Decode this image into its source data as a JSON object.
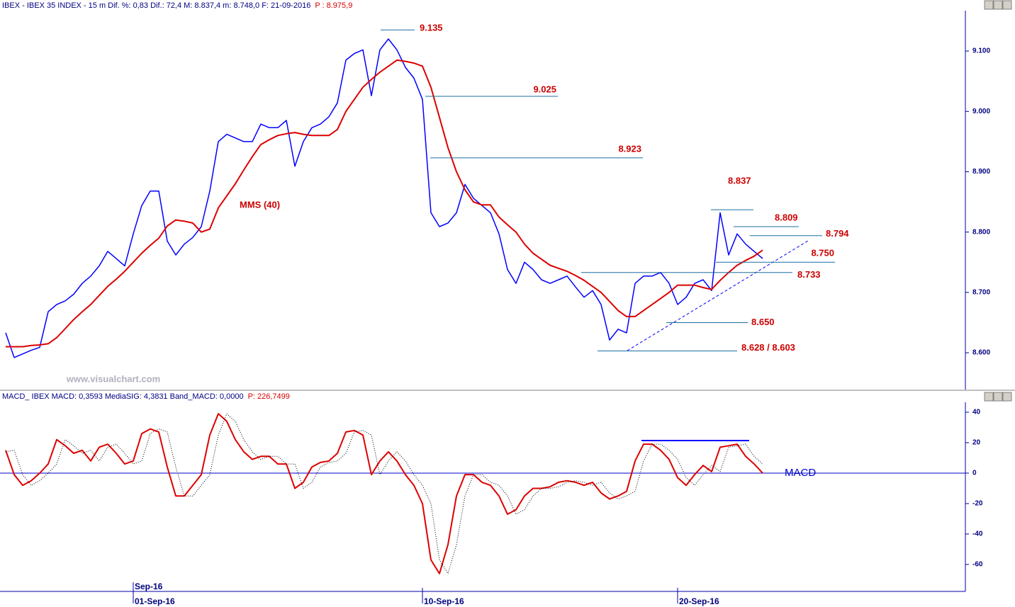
{
  "chart_data": [
    {
      "type": "line",
      "title": "IBEX - IBEX 35 INDEX - 15 m  Dif. %: 0,83  Dif.: 72,4  M: 8.837,4  m: 8.748,0  F: 21-09-2016",
      "title_value": "P : 8.975,9",
      "watermark": "www.visualchart.com",
      "xlim": [
        0,
        113
      ],
      "ylim": [
        8539,
        9167
      ],
      "yticks": [
        {
          "value": 8600,
          "label": "8.600"
        },
        {
          "value": 8700,
          "label": "8.700"
        },
        {
          "value": 8800,
          "label": "8.800"
        },
        {
          "value": 8900,
          "label": "8.900"
        },
        {
          "value": 9000,
          "label": "9.000"
        },
        {
          "value": 9100,
          "label": "9.100"
        }
      ],
      "series": [
        {
          "color": "#0000ff",
          "values": [
            8633,
            8592,
            8598,
            8604,
            8609,
            8668,
            8680,
            8686,
            8697,
            8715,
            8727,
            8744,
            8768,
            8756,
            8744,
            8797,
            8844,
            8868,
            8868,
            8785,
            8762,
            8780,
            8791,
            8809,
            8868,
            8950,
            8962,
            8956,
            8950,
            8950,
            8979,
            8973,
            8973,
            8985,
            8909,
            8950,
            8973,
            8979,
            8991,
            9014,
            9085,
            9096,
            9102,
            9026,
            9102,
            9120,
            9102,
            9073,
            9055,
            9020,
            8832,
            8809,
            8815,
            8832,
            8879,
            8856,
            8844,
            8832,
            8797,
            8738,
            8715,
            8750,
            8738,
            8721,
            8715,
            8721,
            8727,
            8709,
            8692,
            8703,
            8680,
            8621,
            8639,
            8633,
            8715,
            8727,
            8727,
            8733,
            8715,
            8680,
            8692,
            8715,
            8721,
            8703,
            8832,
            8762,
            8797,
            8780,
            8768,
            8756
          ]
        },
        {
          "name": "MMS (40)",
          "color": "#dd0000",
          "values": [
            8610,
            8610,
            8610,
            8612,
            8613,
            8615,
            8625,
            8640,
            8655,
            8668,
            8680,
            8695,
            8710,
            8722,
            8735,
            8750,
            8765,
            8778,
            8790,
            8810,
            8820,
            8818,
            8815,
            8800,
            8805,
            8840,
            8860,
            8880,
            8903,
            8925,
            8945,
            8953,
            8960,
            8963,
            8965,
            8962,
            8960,
            8960,
            8960,
            8970,
            9000,
            9020,
            9040,
            9053,
            9065,
            9075,
            9085,
            9083,
            9080,
            9075,
            9040,
            8990,
            8940,
            8900,
            8870,
            8850,
            8845,
            8845,
            8825,
            8812,
            8800,
            8780,
            8765,
            8755,
            8745,
            8740,
            8735,
            8728,
            8720,
            8710,
            8700,
            8685,
            8670,
            8660,
            8660,
            8670,
            8680,
            8690,
            8700,
            8712,
            8712,
            8712,
            8708,
            8705,
            8720,
            8733,
            8745,
            8753,
            8760,
            8770
          ]
        }
      ],
      "levels": [
        {
          "value": 9135,
          "label": "9.135"
        },
        {
          "value": 9025,
          "label": "9.025"
        },
        {
          "value": 8923,
          "label": "8.923"
        },
        {
          "value": 8837,
          "label": "8.837"
        },
        {
          "value": 8809,
          "label": "8.809"
        },
        {
          "value": 8794,
          "label": "8.794"
        },
        {
          "value": 8750,
          "label": "8.750"
        },
        {
          "value": 8733,
          "label": "8.733"
        },
        {
          "value": 8650,
          "label": "8.650"
        },
        {
          "values": [
            8628,
            8603
          ],
          "label": "8.628 / 8.603"
        }
      ]
    },
    {
      "type": "line",
      "title": "MACD_ IBEX MACD: 0,3593  MediaSIG: 4,3831  Band_MACD: 0,0000",
      "title_value": "P: 226,7499",
      "xlim": [
        0,
        113
      ],
      "ylim": [
        -77.7,
        46.5
      ],
      "yticks": [
        -60,
        -40,
        -20,
        0,
        20,
        40
      ],
      "zero_line": 0,
      "x_period_label": "Sep-16",
      "xticks": [
        {
          "value": 15,
          "label": "01-Sep-16"
        },
        {
          "value": 49,
          "label": "10-Sep-16"
        },
        {
          "value": 79,
          "label": "20-Sep-16"
        }
      ],
      "series": [
        {
          "name": "MACD",
          "color": "#dd0000",
          "values": [
            15,
            -1,
            -8,
            -5,
            0,
            6,
            22,
            18,
            13,
            15,
            8,
            17,
            19,
            13,
            6,
            8,
            26,
            29,
            27,
            4,
            -15,
            -15,
            -8,
            -1,
            25,
            39,
            34,
            22,
            14,
            9,
            11,
            11,
            6,
            6,
            -10,
            -6,
            4,
            7,
            8,
            13,
            27,
            28,
            25,
            -1,
            8,
            14,
            8,
            -1,
            -8,
            -20,
            -57,
            -66,
            -47,
            -15,
            -1,
            -1,
            -6,
            -8,
            -15,
            -27,
            -24,
            -15,
            -10,
            -10,
            -9,
            -6,
            -5,
            -6,
            -8,
            -6,
            -13,
            -17,
            -15,
            -12,
            8,
            19,
            19,
            15,
            9,
            -3,
            -8,
            -1,
            5,
            1,
            17,
            18,
            19,
            11,
            6,
            0
          ]
        },
        {
          "color": "#000000",
          "dotted": true,
          "values": [
            14,
            15,
            -1,
            -8,
            -5,
            0,
            6,
            22,
            18,
            13,
            15,
            8,
            17,
            19,
            13,
            6,
            8,
            26,
            29,
            27,
            4,
            -15,
            -15,
            -8,
            -1,
            25,
            39,
            34,
            22,
            14,
            9,
            11,
            11,
            6,
            6,
            -10,
            -6,
            4,
            7,
            8,
            13,
            27,
            28,
            25,
            -1,
            8,
            14,
            8,
            -1,
            -8,
            -20,
            -57,
            -66,
            -47,
            -15,
            -1,
            -1,
            -6,
            -8,
            -15,
            -27,
            -24,
            -15,
            -10,
            -10,
            -9,
            -6,
            -5,
            -6,
            -8,
            -6,
            -13,
            -17,
            -15,
            -12,
            8,
            19,
            19,
            15,
            9,
            -3,
            -8,
            -1,
            5,
            1,
            17,
            18,
            19,
            11,
            6
          ]
        }
      ]
    }
  ]
}
